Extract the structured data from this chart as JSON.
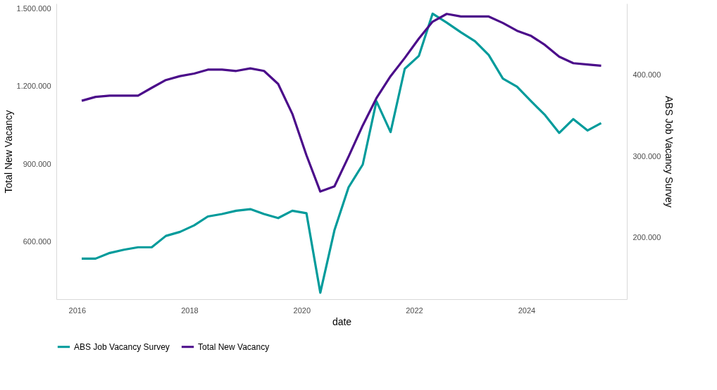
{
  "chart_data": {
    "type": "line",
    "xlabel": "date",
    "ylabel": "Total New Vacancy",
    "y2label": "ABS Job Vacancy Survey",
    "x": [
      "2016-02",
      "2016-05",
      "2016-08",
      "2016-11",
      "2017-02",
      "2017-05",
      "2017-08",
      "2017-11",
      "2018-02",
      "2018-05",
      "2018-08",
      "2018-11",
      "2019-02",
      "2019-05",
      "2019-08",
      "2019-11",
      "2020-02",
      "2020-05",
      "2020-08",
      "2020-11",
      "2021-02",
      "2021-05",
      "2021-08",
      "2021-11",
      "2022-02",
      "2022-05",
      "2022-08",
      "2022-11",
      "2023-02",
      "2023-05",
      "2023-08",
      "2023-11",
      "2024-02",
      "2024-05",
      "2024-08",
      "2024-11",
      "2025-02",
      "2025-05"
    ],
    "series": [
      {
        "name": "ABS Job Vacancy Survey",
        "color": "#009b9b",
        "axis": "y2",
        "values": [
          174000,
          174000,
          181000,
          185000,
          188000,
          188000,
          202000,
          207000,
          215000,
          226000,
          229000,
          233000,
          235000,
          229000,
          224000,
          233000,
          230000,
          132000,
          209000,
          262000,
          290000,
          368000,
          330000,
          408000,
          424000,
          476000,
          465000,
          453000,
          442000,
          425000,
          396000,
          386000,
          368000,
          351000,
          329000,
          346000,
          332000,
          341000
        ]
      },
      {
        "name": "Total New Vacancy",
        "color": "#4b0c8a",
        "values": [
          1145000,
          1160000,
          1165000,
          1165000,
          1165000,
          1195000,
          1225000,
          1240000,
          1250000,
          1265000,
          1265000,
          1260000,
          1270000,
          1260000,
          1210000,
          1095000,
          935000,
          795000,
          815000,
          930000,
          1050000,
          1155000,
          1240000,
          1310000,
          1385000,
          1450000,
          1480000,
          1470000,
          1470000,
          1470000,
          1445000,
          1415000,
          1395000,
          1360000,
          1315000,
          1290000,
          1285000,
          1280000
        ]
      }
    ],
    "xlim": [
      "2015-08-20",
      "2025-10-15"
    ],
    "xticks": [
      "2016",
      "2018",
      "2020",
      "2022",
      "2024"
    ],
    "ylim": [
      380000,
      1520000
    ],
    "yticks": [
      {
        "value": 600000,
        "label": "600.000"
      },
      {
        "value": 900000,
        "label": "900.000"
      },
      {
        "value": 1200000,
        "label": "1.200.000"
      },
      {
        "value": 1500000,
        "label": "1.500.000"
      }
    ],
    "y2lim": [
      124000,
      488500
    ],
    "y2ticks": [
      {
        "value": 200000,
        "label": "200.000"
      },
      {
        "value": 300000,
        "label": "300.000"
      },
      {
        "value": 400000,
        "label": "400.000"
      }
    ],
    "legend": "bottom",
    "grid": false,
    "line_style": "solid",
    "marker": "none"
  }
}
